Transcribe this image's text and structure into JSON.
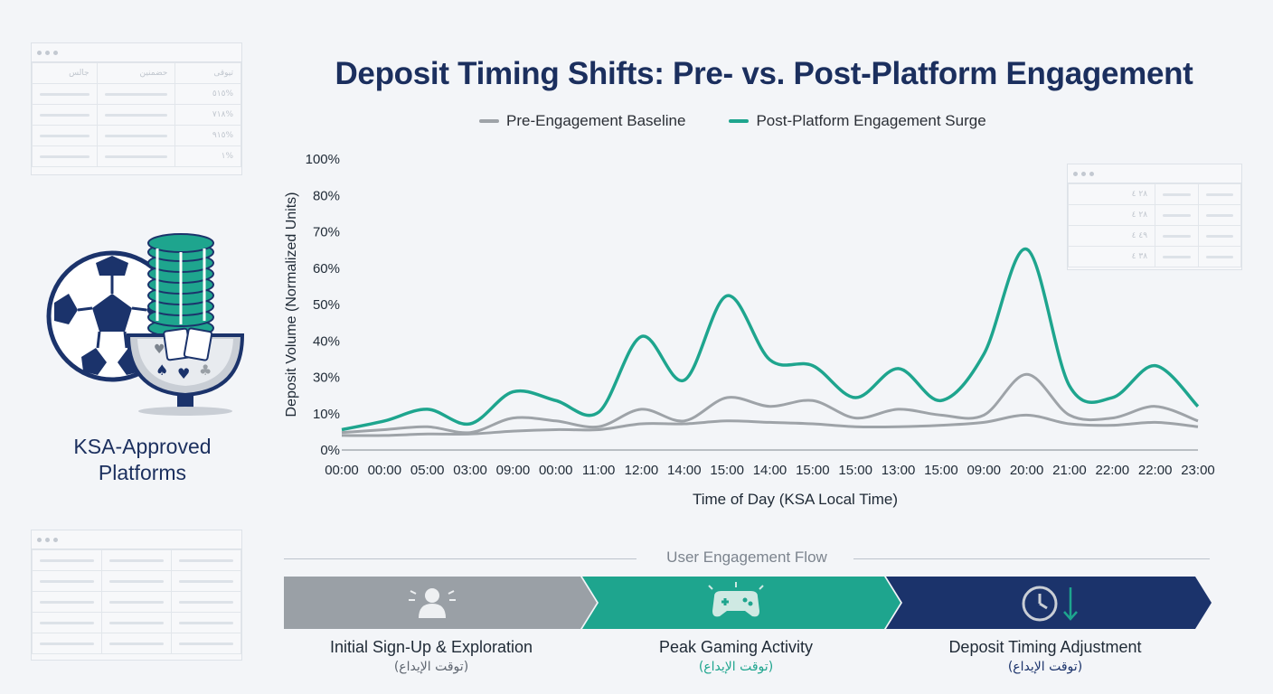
{
  "title": "Deposit Timing Shifts: Pre- vs. Post-Platform Engagement",
  "colors": {
    "title": "#1b2f5e",
    "baseline": "#9ea3a8",
    "surge": "#1ea58e",
    "navy": "#1b336b",
    "gray": "#9aa0a6"
  },
  "chart_data": {
    "type": "line",
    "title": "Deposit Timing Shifts: Pre- vs. Post-Platform Engagement",
    "xlabel": "Time of Day (KSA Local Time)",
    "ylabel": "Deposit Volume (Normalized Units)",
    "x_ticks": [
      "00:00",
      "00:00",
      "05:00",
      "03:00",
      "09:00",
      "00:00",
      "11:00",
      "12:00",
      "14:00",
      "15:00",
      "14:00",
      "15:00",
      "15:00",
      "13:00",
      "15:00",
      "09:00",
      "20:00",
      "21:00",
      "22:00",
      "22:00",
      "23:00"
    ],
    "y_ticks": [
      "0%",
      "10%",
      "30%",
      "40%",
      "50%",
      "60%",
      "70%",
      "80%",
      "100%"
    ],
    "legend_position": "top",
    "grid": false,
    "series": [
      {
        "name": "Pre-Engagement Baseline",
        "color": "#9ea3a8",
        "values": [
          6,
          7,
          8,
          6,
          11,
          10,
          8,
          14,
          10,
          18,
          15,
          17,
          11,
          14,
          12,
          12,
          26,
          12,
          11,
          15,
          10
        ]
      },
      {
        "name": "Post-Platform Engagement Surge",
        "color": "#1ea58e",
        "values": [
          7,
          10,
          14,
          9,
          20,
          17,
          13,
          39,
          24,
          53,
          31,
          29,
          18,
          28,
          17,
          33,
          69,
          22,
          18,
          29,
          15
        ]
      },
      {
        "name": "",
        "color": "#9ea3a8",
        "values": [
          5,
          5,
          5.5,
          5.5,
          6.5,
          7,
          7,
          9,
          9,
          10,
          9.5,
          9,
          8,
          8,
          8.5,
          9.5,
          12,
          9,
          8.5,
          9.5,
          8
        ]
      }
    ]
  },
  "side": {
    "ksa_line1": "KSA-Approved",
    "ksa_line2": "Platforms",
    "table1": {
      "headers": [
        "جالس",
        "حضمنين",
        "تيوقى"
      ],
      "values": [
        "٥١٥%",
        "٧١٨%",
        "٩١٥%",
        "١%"
      ]
    },
    "table2": {
      "values": [
        "٢٨ ٤",
        "٢٨ ٤",
        "٤٩ ٤",
        "٣٨ ٤"
      ]
    }
  },
  "flow": {
    "title": "User Engagement Flow",
    "steps": [
      {
        "label": "Initial Sign-Up & Exploration",
        "sub": "(توقت الإيداع)",
        "icon": "user-icon",
        "color": "#9aa0a6"
      },
      {
        "label": "Peak Gaming Activity",
        "sub": "(توقت الإيداع)",
        "icon": "gamepad-icon",
        "color": "#1ea58e"
      },
      {
        "label": "Deposit Timing Adjustment",
        "sub": "(توقت الإيداع)",
        "icon": "clock-icon",
        "color": "#1b336b"
      }
    ]
  }
}
